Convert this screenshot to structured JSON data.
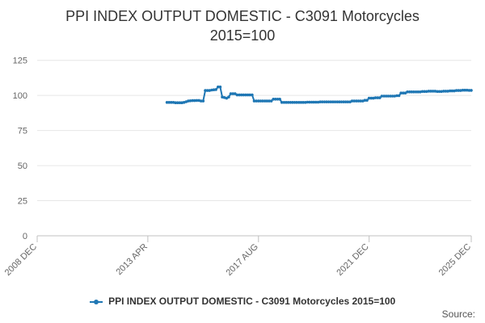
{
  "chart_data": {
    "type": "line",
    "title": "PPI INDEX OUTPUT DOMESTIC - C3091 Motorcycles",
    "subtitle": "2015=100",
    "xlabel": "",
    "ylabel": "",
    "x_ticks": [
      "2008 DEC",
      "2013 APR",
      "2017 AUG",
      "2021 DEC",
      "2025 DEC"
    ],
    "y_ticks": [
      0,
      25,
      50,
      75,
      100,
      125
    ],
    "xlim": [
      "2008-12",
      "2025-12"
    ],
    "ylim": [
      0,
      130
    ],
    "grid": true,
    "legend_position": "bottom",
    "series": [
      {
        "name": "PPI INDEX OUTPUT DOMESTIC - C3091 Motorcycles 2015=100",
        "color": "#1f77b4",
        "marker": "circle",
        "points": [
          [
            "2014-01",
            95.0
          ],
          [
            "2014-02",
            95.0
          ],
          [
            "2014-03",
            95.0
          ],
          [
            "2014-04",
            95.0
          ],
          [
            "2014-05",
            94.8
          ],
          [
            "2014-06",
            94.8
          ],
          [
            "2014-07",
            94.8
          ],
          [
            "2014-08",
            94.8
          ],
          [
            "2014-09",
            95.0
          ],
          [
            "2014-10",
            95.5
          ],
          [
            "2014-11",
            96.0
          ],
          [
            "2014-12",
            96.2
          ],
          [
            "2015-01",
            96.3
          ],
          [
            "2015-02",
            96.3
          ],
          [
            "2015-03",
            96.4
          ],
          [
            "2015-04",
            96.4
          ],
          [
            "2015-05",
            96.0
          ],
          [
            "2015-06",
            96.0
          ],
          [
            "2015-07",
            103.5
          ],
          [
            "2015-08",
            103.5
          ],
          [
            "2015-09",
            103.5
          ],
          [
            "2015-10",
            103.8
          ],
          [
            "2015-11",
            104.0
          ],
          [
            "2015-12",
            104.2
          ],
          [
            "2016-01",
            106.0
          ],
          [
            "2016-02",
            106.0
          ],
          [
            "2016-03",
            98.8
          ],
          [
            "2016-04",
            98.5
          ],
          [
            "2016-05",
            98.0
          ],
          [
            "2016-06",
            98.8
          ],
          [
            "2016-07",
            101.2
          ],
          [
            "2016-08",
            101.2
          ],
          [
            "2016-09",
            101.2
          ],
          [
            "2016-10",
            100.3
          ],
          [
            "2016-11",
            100.3
          ],
          [
            "2016-12",
            100.3
          ],
          [
            "2017-01",
            100.3
          ],
          [
            "2017-02",
            100.3
          ],
          [
            "2017-03",
            100.3
          ],
          [
            "2017-04",
            100.3
          ],
          [
            "2017-05",
            100.3
          ],
          [
            "2017-06",
            96.0
          ],
          [
            "2017-07",
            96.0
          ],
          [
            "2017-08",
            96.0
          ],
          [
            "2017-09",
            96.0
          ],
          [
            "2017-10",
            96.0
          ],
          [
            "2017-11",
            96.0
          ],
          [
            "2017-12",
            96.0
          ],
          [
            "2018-01",
            96.0
          ],
          [
            "2018-02",
            96.0
          ],
          [
            "2018-03",
            97.3
          ],
          [
            "2018-04",
            97.3
          ],
          [
            "2018-05",
            97.3
          ],
          [
            "2018-06",
            97.3
          ],
          [
            "2018-07",
            95.0
          ],
          [
            "2018-08",
            95.0
          ],
          [
            "2018-09",
            95.0
          ],
          [
            "2018-10",
            95.0
          ],
          [
            "2018-11",
            95.0
          ],
          [
            "2018-12",
            95.0
          ],
          [
            "2019-01",
            95.0
          ],
          [
            "2019-02",
            95.0
          ],
          [
            "2019-03",
            95.0
          ],
          [
            "2019-04",
            95.0
          ],
          [
            "2019-05",
            95.0
          ],
          [
            "2019-06",
            95.0
          ],
          [
            "2019-07",
            95.2
          ],
          [
            "2019-08",
            95.2
          ],
          [
            "2019-09",
            95.2
          ],
          [
            "2019-10",
            95.2
          ],
          [
            "2019-11",
            95.2
          ],
          [
            "2019-12",
            95.2
          ],
          [
            "2020-01",
            95.4
          ],
          [
            "2020-02",
            95.4
          ],
          [
            "2020-03",
            95.4
          ],
          [
            "2020-04",
            95.4
          ],
          [
            "2020-05",
            95.4
          ],
          [
            "2020-06",
            95.4
          ],
          [
            "2020-07",
            95.4
          ],
          [
            "2020-08",
            95.4
          ],
          [
            "2020-09",
            95.4
          ],
          [
            "2020-10",
            95.4
          ],
          [
            "2020-11",
            95.4
          ],
          [
            "2020-12",
            95.4
          ],
          [
            "2021-01",
            95.4
          ],
          [
            "2021-02",
            95.4
          ],
          [
            "2021-03",
            95.4
          ],
          [
            "2021-04",
            96.0
          ],
          [
            "2021-05",
            96.0
          ],
          [
            "2021-06",
            96.0
          ],
          [
            "2021-07",
            96.0
          ],
          [
            "2021-08",
            96.0
          ],
          [
            "2021-09",
            96.0
          ],
          [
            "2021-10",
            96.5
          ],
          [
            "2021-11",
            96.5
          ],
          [
            "2021-12",
            98.0
          ],
          [
            "2022-01",
            98.0
          ],
          [
            "2022-02",
            98.0
          ],
          [
            "2022-03",
            98.3
          ],
          [
            "2022-04",
            98.3
          ],
          [
            "2022-05",
            98.3
          ],
          [
            "2022-06",
            99.5
          ],
          [
            "2022-07",
            99.5
          ],
          [
            "2022-08",
            99.5
          ],
          [
            "2022-09",
            99.5
          ],
          [
            "2022-10",
            99.5
          ],
          [
            "2022-11",
            99.5
          ],
          [
            "2022-12",
            99.5
          ],
          [
            "2023-01",
            99.8
          ],
          [
            "2023-02",
            99.8
          ],
          [
            "2023-03",
            101.7
          ],
          [
            "2023-04",
            101.7
          ],
          [
            "2023-05",
            101.7
          ],
          [
            "2023-06",
            102.5
          ],
          [
            "2023-07",
            102.5
          ],
          [
            "2023-08",
            102.5
          ],
          [
            "2023-09",
            102.5
          ],
          [
            "2023-10",
            102.5
          ],
          [
            "2023-11",
            102.5
          ],
          [
            "2023-12",
            102.5
          ],
          [
            "2024-01",
            102.8
          ],
          [
            "2024-02",
            102.8
          ],
          [
            "2024-03",
            102.8
          ],
          [
            "2024-04",
            103.0
          ],
          [
            "2024-05",
            103.0
          ],
          [
            "2024-06",
            103.0
          ],
          [
            "2024-07",
            103.0
          ],
          [
            "2024-08",
            102.8
          ],
          [
            "2024-09",
            102.8
          ],
          [
            "2024-10",
            102.8
          ],
          [
            "2024-11",
            103.0
          ],
          [
            "2024-12",
            103.0
          ],
          [
            "2025-01",
            103.0
          ],
          [
            "2025-02",
            103.2
          ],
          [
            "2025-03",
            103.2
          ],
          [
            "2025-04",
            103.2
          ],
          [
            "2025-05",
            103.5
          ],
          [
            "2025-06",
            103.5
          ],
          [
            "2025-07",
            103.5
          ],
          [
            "2025-08",
            103.7
          ],
          [
            "2025-09",
            103.7
          ],
          [
            "2025-10",
            103.7
          ],
          [
            "2025-11",
            103.6
          ],
          [
            "2025-12",
            103.6
          ]
        ]
      }
    ]
  },
  "footer": {
    "source_label": "Source:"
  }
}
